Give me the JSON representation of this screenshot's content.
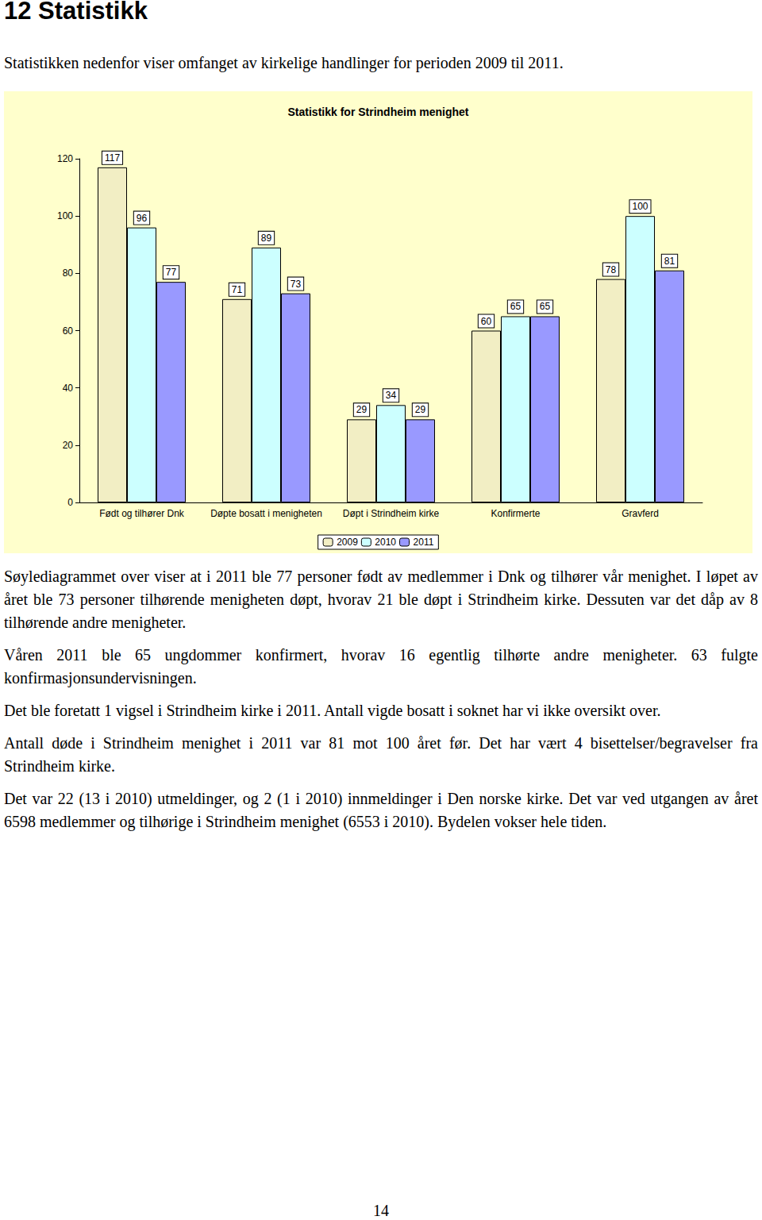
{
  "heading": "12 Statistikk",
  "intro": "Statistikken nedenfor viser omfanget av kirkelige handlinger for perioden 2009 til 2011.",
  "paragraphs": [
    "Søylediagrammet over viser at i 2011 ble 77 personer født av medlemmer i Dnk og tilhører vår menighet. I løpet av året ble 73 personer tilhørende menigheten døpt, hvorav 21 ble døpt i Strindheim kirke. Dessuten var det dåp av 8 tilhørende andre menigheter.",
    "Våren 2011 ble 65 ungdommer konfirmert, hvorav 16 egentlig tilhørte andre menigheter. 63 fulgte konfirmasjonsundervisningen.",
    "Det ble foretatt 1 vigsel i Strindheim kirke i 2011. Antall vigde bosatt i soknet har vi ikke oversikt over.",
    "Antall døde i Strindheim menighet i 2011 var 81 mot 100 året før. Det har vært 4 bisettelser/begravelser fra Strindheim kirke.",
    "Det var 22 (13 i 2010) utmeldinger, og 2 (1 i 2010) innmeldinger i Den norske kirke. Det var ved utgangen av året 6598 medlemmer og tilhørige i Strindheim menighet (6553 i 2010). Bydelen vokser hele tiden."
  ],
  "page_number": "14",
  "chart_data": {
    "type": "bar",
    "title": "Statistikk for Strindheim menighet",
    "categories": [
      "Født og tilhører Dnk",
      "Døpte bosatt i menigheten",
      "Døpt i Strindheim kirke",
      "Konfirmerte",
      "Gravferd"
    ],
    "series": [
      {
        "name": "2009",
        "color": "#f2eec4",
        "values": [
          117,
          71,
          29,
          60,
          78
        ]
      },
      {
        "name": "2010",
        "color": "#ccffff",
        "values": [
          96,
          89,
          34,
          65,
          100
        ]
      },
      {
        "name": "2011",
        "color": "#9999ff",
        "values": [
          77,
          73,
          29,
          65,
          81
        ]
      }
    ],
    "ylim": [
      0,
      120
    ],
    "yticks": [
      0,
      20,
      40,
      60,
      80,
      100,
      120
    ],
    "grid": false,
    "legend": "bottom",
    "data_labels": true
  }
}
